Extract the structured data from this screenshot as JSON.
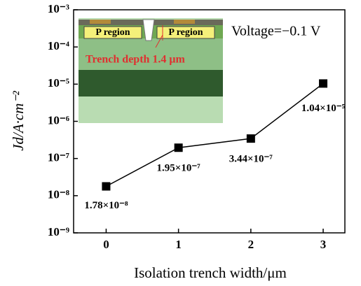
{
  "chart_data": {
    "type": "line",
    "x_label": "Isolation trench width/μm",
    "y_label": "Jd/A·cm⁻²",
    "annotations": [
      "Voltage=−0.1 V",
      "P region",
      "P region",
      "Trench depth 1.4 μm"
    ],
    "x": [
      0,
      1,
      2,
      3
    ],
    "values": [
      1.78e-08,
      1.95e-07,
      3.44e-07,
      1.04e-05
    ],
    "value_labels": [
      "1.78×10⁻⁸",
      "1.95×10⁻⁷",
      "3.44×10⁻⁷",
      "1.04×10⁻⁵"
    ],
    "color": "#000000",
    "log_y": true,
    "xlim": [
      -0.45,
      3.3
    ],
    "xticks": [
      0,
      1,
      2,
      3
    ],
    "ylim": [
      1e-09,
      0.001
    ],
    "yticks": [
      {
        "value": 1e-09,
        "label": "10⁻⁹"
      },
      {
        "value": 1e-08,
        "label": "10⁻⁸"
      },
      {
        "value": 1e-07,
        "label": "10⁻⁷"
      },
      {
        "value": 1e-06,
        "label": "10⁻⁶"
      },
      {
        "value": 1e-05,
        "label": "10⁻⁵"
      },
      {
        "value": 0.0001,
        "label": "10⁻⁴"
      },
      {
        "value": 0.001,
        "label": "10⁻³"
      }
    ]
  }
}
